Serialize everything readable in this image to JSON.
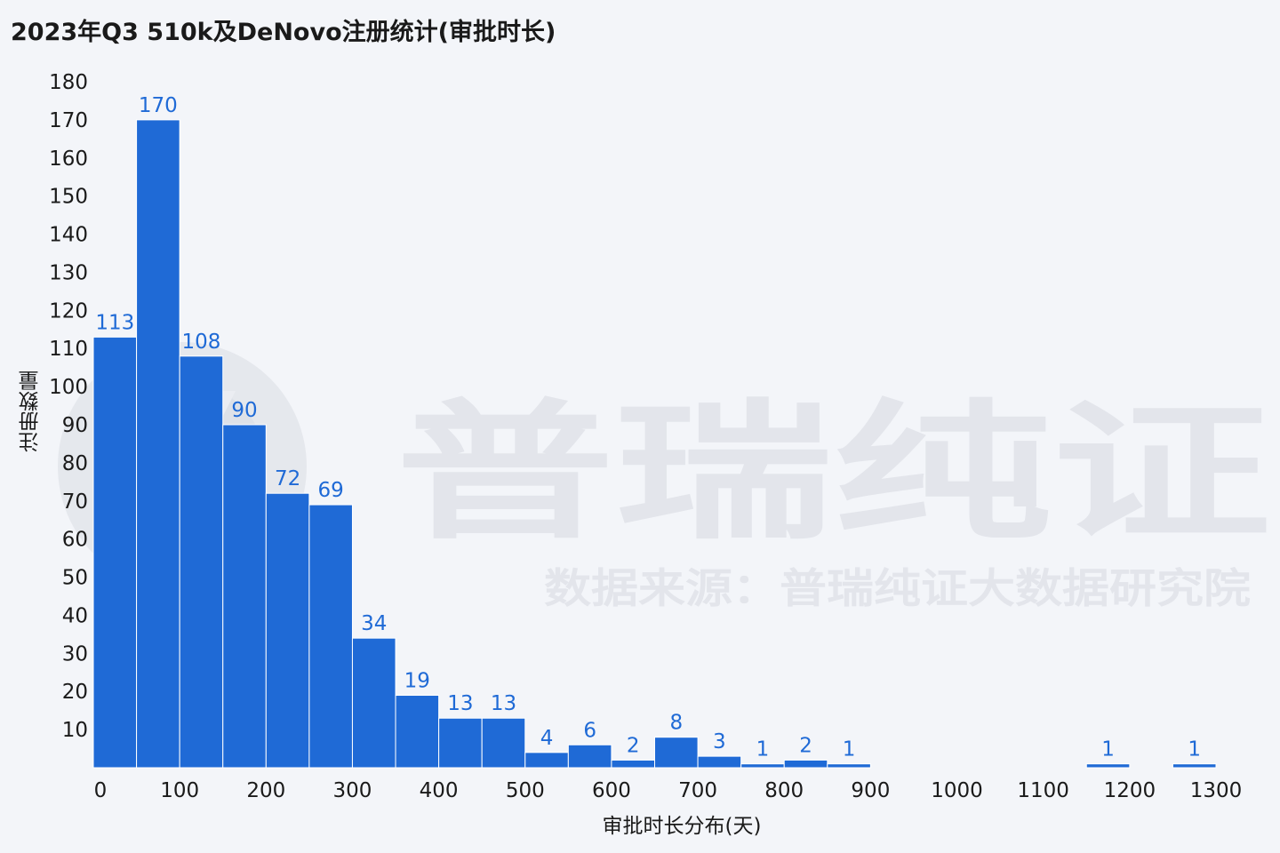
{
  "chart_data": {
    "type": "bar",
    "title": "2023年Q3 510k及DeNovo注册统计(审批时长)",
    "xlabel": "审批时长分布(天)",
    "ylabel": "注册数量",
    "bin_width": 50,
    "bins": [
      {
        "start": 0,
        "value": 113
      },
      {
        "start": 50,
        "value": 170
      },
      {
        "start": 100,
        "value": 108
      },
      {
        "start": 150,
        "value": 90
      },
      {
        "start": 200,
        "value": 72
      },
      {
        "start": 250,
        "value": 69
      },
      {
        "start": 300,
        "value": 34
      },
      {
        "start": 350,
        "value": 19
      },
      {
        "start": 400,
        "value": 13
      },
      {
        "start": 450,
        "value": 13
      },
      {
        "start": 500,
        "value": 4
      },
      {
        "start": 550,
        "value": 6
      },
      {
        "start": 600,
        "value": 2
      },
      {
        "start": 650,
        "value": 8
      },
      {
        "start": 700,
        "value": 3
      },
      {
        "start": 750,
        "value": 1
      },
      {
        "start": 800,
        "value": 2
      },
      {
        "start": 850,
        "value": 1
      },
      {
        "start": 1150,
        "value": 1
      },
      {
        "start": 1250,
        "value": 1
      }
    ],
    "xlim": [
      0,
      1300
    ],
    "ylim": [
      0,
      180
    ],
    "x_ticks": [
      "0",
      "100",
      "200",
      "300",
      "400",
      "500",
      "600",
      "700",
      "800",
      "900",
      "1000",
      "1100",
      "1200",
      "1300"
    ],
    "y_ticks": [
      "10",
      "20",
      "30",
      "40",
      "50",
      "60",
      "70",
      "80",
      "90",
      "100",
      "110",
      "120",
      "130",
      "140",
      "150",
      "160",
      "170",
      "180"
    ],
    "bar_color": "#1f6ad6",
    "label_color": "#1f6ad6",
    "grid": false,
    "legend": "none"
  },
  "watermark": {
    "brand": "普瑞纯证",
    "source": "数据来源：普瑞纯证大数据研究院",
    "logo_icon": "brand-circle-logo-icon"
  }
}
